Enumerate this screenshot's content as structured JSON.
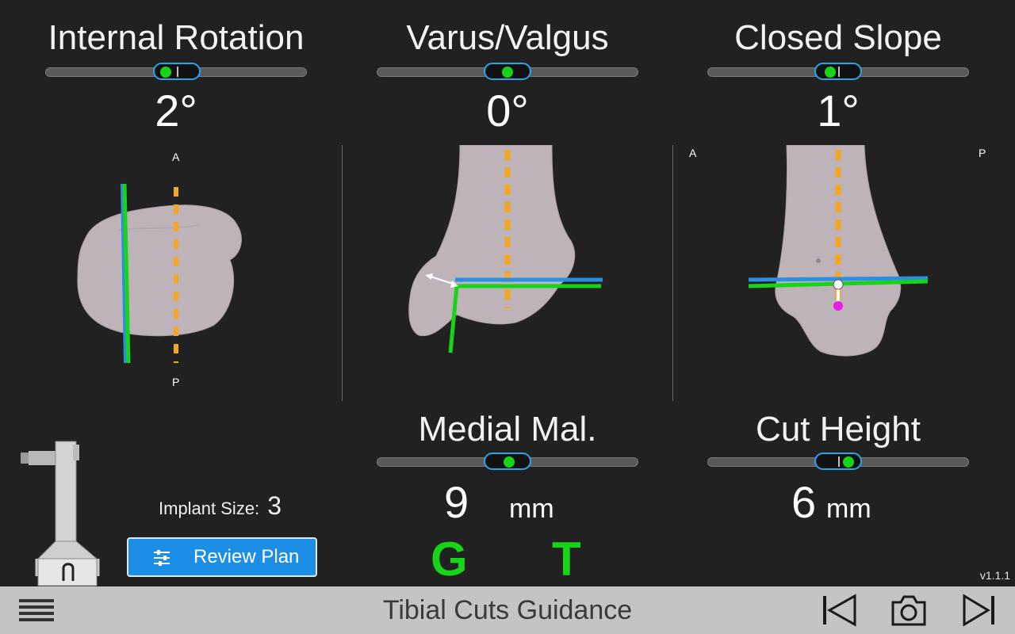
{
  "panels": {
    "internal_rotation": {
      "title": "Internal Rotation",
      "value": "2°",
      "slider_level": 0.45
    },
    "varus_valgus": {
      "title": "Varus/Valgus",
      "value": "0°",
      "slider_level": 0.5
    },
    "closed_slope": {
      "title": "Closed Slope",
      "value": "1°",
      "slider_level": 0.47
    },
    "medial_mal": {
      "title": "Medial Mal.",
      "value": "9",
      "unit": "mm",
      "slider_level": 0.53
    },
    "cut_height": {
      "title": "Cut Height",
      "value": "6",
      "unit": "mm",
      "slider_level": 0.55
    }
  },
  "orientation_labels": {
    "anterior": "A",
    "posterior": "P"
  },
  "implant": {
    "label": "Implant Size:",
    "size": "3"
  },
  "review_button": {
    "label": "Review Plan",
    "icon": "sliders-icon"
  },
  "indicators": {
    "g": "G",
    "t": "T"
  },
  "version": "v1.1.1",
  "bottom_bar": {
    "title": "Tibial Cuts Guidance",
    "menu_icon": "hamburger-menu-icon",
    "prev_icon": "skip-previous-icon",
    "camera_icon": "camera-icon",
    "next_icon": "skip-next-icon"
  },
  "colors": {
    "background": "#212121",
    "accent_blue": "#1d8ee6",
    "indicator_green": "#18d418",
    "axis_orange": "#f5a623",
    "bottom_bar": "#c4c4c4"
  }
}
